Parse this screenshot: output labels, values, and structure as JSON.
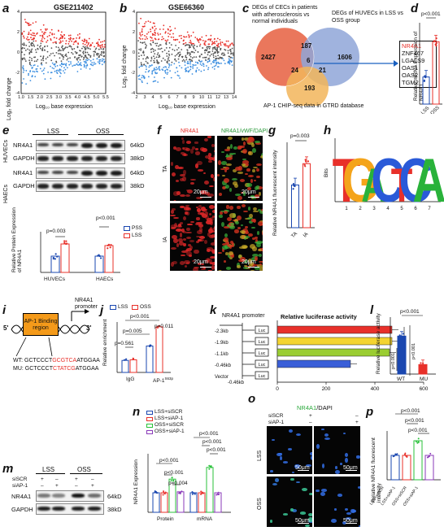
{
  "colors": {
    "red": "#e8302a",
    "blue": "#3d8fe0",
    "navy": "#1a47b0",
    "grey": "#444444",
    "gold": "#f4c430",
    "purple": "#8a3ab9",
    "green": "#29c23a"
  },
  "a": {
    "letter": "a",
    "title": "GSE211402",
    "xlabel": "Log₁₀ base expression",
    "ylabel": "Log₂ fold change",
    "xticks": [
      "1.0",
      "1.5",
      "2.0",
      "2.5",
      "3.0",
      "3.5",
      "4.0",
      "4.5",
      "5.0",
      "5.5"
    ],
    "yticks": [
      "4",
      "2",
      "0",
      "-2",
      "-4"
    ]
  },
  "b": {
    "letter": "b",
    "title": "GSE66360",
    "xlabel": "Log₁₀ base expression",
    "ylabel": "Log₂ fold change",
    "xticks": [
      "2",
      "3",
      "4",
      "5",
      "6",
      "7",
      "8",
      "9",
      "10",
      "11",
      "12",
      "13",
      "14"
    ],
    "yticks": [
      "4",
      "2",
      "0",
      "-2",
      "-4"
    ]
  },
  "c": {
    "letter": "c",
    "label_left": "DEGs of CECs in patients with atherosclerosis vs normal individuals",
    "label_right": "DEGs of HUVECs in LSS vs OSS group",
    "label_bottom": "AP-1 CHIP-seq data in GTRD database",
    "n_left": "2427",
    "n_top": "187",
    "n_right": "1606",
    "n_center": "6",
    "n_lb": "24",
    "n_rb": "21",
    "n_bottom": "193",
    "genes": [
      "NR4A1",
      "ZNF467",
      "LGALS9",
      "OAS1",
      "OAS2",
      "TGM2"
    ]
  },
  "d": {
    "letter": "d",
    "ylabel": "Relative mRNA Expression of NR4A1",
    "p": "p<0.001",
    "categories": [
      "LSS",
      "OSS"
    ],
    "chart_data": {
      "type": "bar",
      "categories": [
        "LSS",
        "OSS"
      ],
      "values": [
        1.0,
        2.3
      ],
      "ylim": [
        0,
        3
      ]
    }
  },
  "e": {
    "letter": "e",
    "cond": [
      "LSS",
      "OSS"
    ],
    "rows": [
      "NR4A1",
      "GAPDH",
      "NR4A1",
      "GAPDH"
    ],
    "sizes": [
      "64kD",
      "38kD",
      "64kD",
      "38kD"
    ],
    "cells": [
      "HUVECs",
      "HAECs"
    ],
    "ylabel": "Relative Protein Expression of NR4A1",
    "p1": "p=0.003",
    "p2": "p<0.001",
    "legend": [
      "PSS",
      "LSS"
    ],
    "chart_data": {
      "type": "bar",
      "categories": [
        "HUVECs",
        "HAECs"
      ],
      "series": [
        {
          "name": "PSS",
          "values": [
            1.0,
            1.0
          ]
        },
        {
          "name": "LSS",
          "values": [
            1.75,
            1.65
          ]
        }
      ]
    }
  },
  "f": {
    "letter": "f",
    "col1": "NR4A1",
    "col2": "NR4A1/vWF/DAPI",
    "rows": [
      "TA",
      "IA"
    ],
    "scale": "20μm"
  },
  "g": {
    "letter": "g",
    "ylabel": "Relative NR4A1 fluorescent intensity",
    "p": "p=0.003",
    "categories": [
      "TA",
      "IA"
    ],
    "chart_data": {
      "type": "bar",
      "categories": [
        "TA",
        "IA"
      ],
      "values": [
        1.0,
        1.5
      ],
      "ylim": [
        0,
        2
      ]
    }
  },
  "h": {
    "letter": "h",
    "ylabel": "Bits",
    "xticks": [
      "1",
      "2",
      "3",
      "4",
      "5",
      "6",
      "7"
    ],
    "motif": [
      "T",
      "G",
      "A",
      "C",
      "T",
      "C",
      "A"
    ]
  },
  "i": {
    "letter": "i",
    "box": "AP-1 Binding region",
    "promoter": "NR4A1 promoter",
    "five": "5'",
    "three": "3'",
    "wt_label": "WT:",
    "wt_pre": "GCTCCCT",
    "wt_site": "GCGTCA",
    "wt_post": "ATGGAA",
    "mu_label": "MU:",
    "mu_pre": "GCTCCCT",
    "mu_site": "CTATCG",
    "mu_post": "ATGGAA"
  },
  "j": {
    "letter": "j",
    "legend": [
      "LSS",
      "OSS"
    ],
    "ylabel": "Relative enrichment",
    "p_top": "p<0.001",
    "p_mid": "p=0.005",
    "p_igg": "p=0.561",
    "p_ap1": "p=0.011",
    "categories": [
      "IgG",
      "AP-1"
    ],
    "ap1_sup": "S63p",
    "chart_data": {
      "type": "bar",
      "categories": [
        "IgG",
        "AP-1"
      ],
      "series": [
        {
          "name": "LSS",
          "values": [
            1.0,
            2.2
          ]
        },
        {
          "name": "OSS",
          "values": [
            1.05,
            3.8
          ]
        }
      ],
      "ylim": [
        0,
        4
      ]
    }
  },
  "k": {
    "letter": "k",
    "promoter": "NR4A1 promoter",
    "title": "Relative luciferase activity",
    "constructs": [
      "-2.3kb",
      "-1.9kb",
      "-1.1kb",
      "-0.46kb",
      "-0.46kb"
    ],
    "vector": "Vector",
    "luc": "Luc",
    "p1": "p<0.001",
    "p2": "p<0.001",
    "p3": "p<0.001",
    "chart_data": {
      "type": "bar",
      "categories": [
        "-2.3kb",
        "-1.9kb",
        "-1.1kb",
        "-0.46kb",
        "Vector"
      ],
      "values": [
        470,
        470,
        460,
        300,
        0
      ],
      "xlim": [
        0,
        600
      ],
      "xticks": [
        "0",
        "200",
        "400",
        "600"
      ]
    }
  },
  "l": {
    "letter": "l",
    "ylabel": "Relative luciferase activity",
    "p": "p<0.001",
    "categories": [
      "WT",
      "MU"
    ],
    "chart_data": {
      "type": "bar",
      "categories": [
        "WT",
        "MU"
      ],
      "values": [
        1.0,
        0.25
      ],
      "ylim": [
        0,
        1.5
      ]
    }
  },
  "m": {
    "letter": "m",
    "cond": [
      "LSS",
      "OSS"
    ],
    "sirow1": "siSCR",
    "sirow2": "siAP-1",
    "signs1": [
      "+",
      "–",
      "+",
      "–"
    ],
    "signs2": [
      "–",
      "+",
      "–",
      "+"
    ],
    "rows": [
      "NR4A1",
      "GAPDH"
    ],
    "sizes": [
      "64kD",
      "38kD"
    ]
  },
  "n": {
    "letter": "n",
    "legend": [
      "LSS+siSCR",
      "LSS+siAP-1",
      "OSS+siSCR",
      "OSS+siAP-1"
    ],
    "ylabel": "NR4A1 Expression",
    "groups": [
      "Protein",
      "mRNA"
    ],
    "pvals": [
      "p<0.001",
      "p<0.001",
      "p=0.004",
      "p<0.001",
      "p<0.001",
      "p<0.001"
    ],
    "chart_data": {
      "type": "bar",
      "categories": [
        "Protein",
        "mRNA"
      ],
      "series": [
        {
          "name": "LSS+siSCR",
          "values": [
            1.0,
            1.0
          ]
        },
        {
          "name": "LSS+siAP-1",
          "values": [
            1.0,
            1.0
          ]
        },
        {
          "name": "OSS+siSCR",
          "values": [
            1.7,
            2.3
          ]
        },
        {
          "name": "OSS+siAP-1",
          "values": [
            1.05,
            1.0
          ]
        }
      ],
      "ylim": [
        0,
        3
      ]
    }
  },
  "o": {
    "letter": "o",
    "title1": "NR4A1",
    "title2": "/DAPI",
    "sirow1": "siSCR",
    "sirow2": "siAP-1",
    "plus": "+",
    "minus": "–",
    "rows": [
      "LSS",
      "OSS"
    ],
    "scale": "50μm"
  },
  "p": {
    "letter": "p",
    "ylabel": "Relative NR4A1 fluorescent intensity",
    "pvals": [
      "p<0.001",
      "p<0.001",
      "p<0.001"
    ],
    "categories": [
      "LSS+siSCR",
      "LSS+siAP-1",
      "OSS+siSCR",
      "OSS+siAP-1"
    ],
    "chart_data": {
      "type": "bar",
      "categories": [
        "LSS+siSCR",
        "LSS+siAP-1",
        "OSS+siSCR",
        "OSS+siAP-1"
      ],
      "values": [
        1.0,
        1.0,
        1.6,
        1.0
      ],
      "ylim": [
        0,
        2
      ]
    }
  }
}
